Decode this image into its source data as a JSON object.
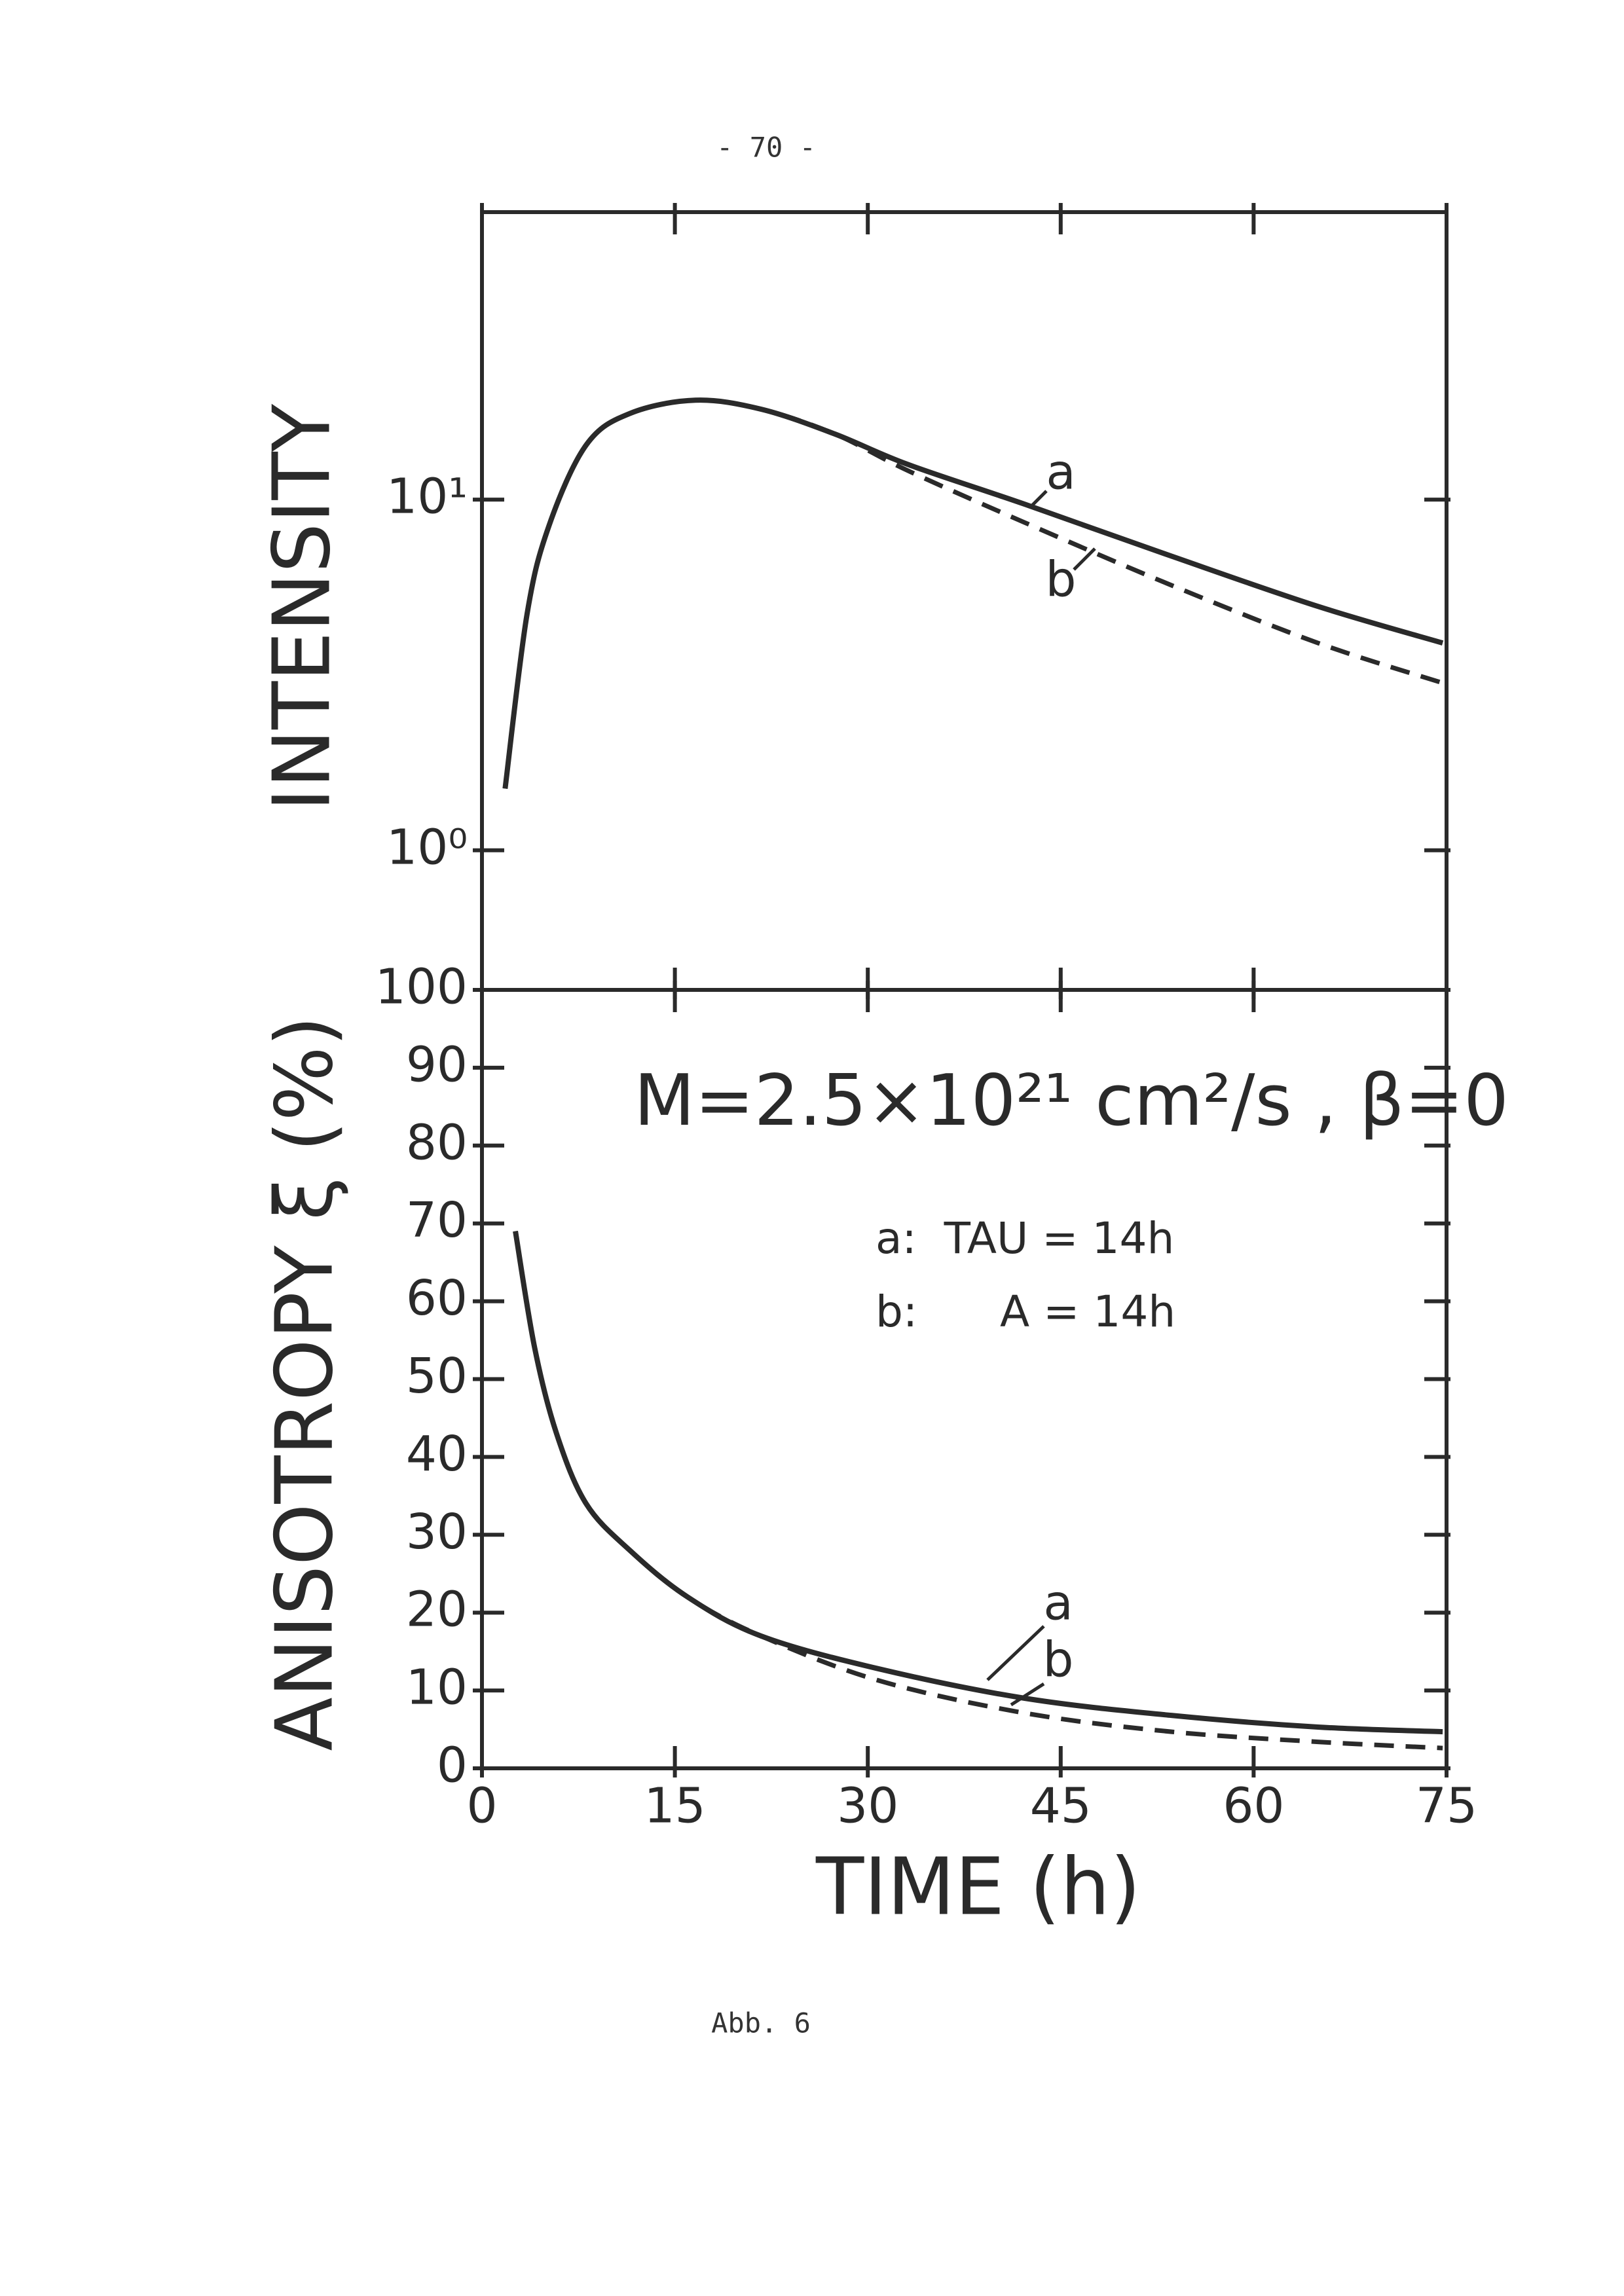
{
  "page_number": "- 70 -",
  "caption": "Abb. 6",
  "chart_data": [
    {
      "type": "line",
      "log_y": true,
      "ylabel": "INTENSITY",
      "xlim": [
        0,
        75
      ],
      "xticks": [
        0,
        15,
        30,
        45,
        60,
        75
      ],
      "ylim": [
        0.4,
        66
      ],
      "yticks": [
        {
          "value": 1,
          "label": "10⁰"
        },
        {
          "value": 10,
          "label": "10¹"
        }
      ],
      "series": [
        {
          "name": "a",
          "color": "#2a2a2a",
          "dashed": false,
          "x": [
            1.8,
            3.5,
            5.2,
            8.1,
            11.5,
            16.6,
            21.7,
            27.4,
            33.1,
            42.2,
            53.6,
            65,
            74.7
          ],
          "values": [
            1.5,
            4.7,
            8.4,
            14.3,
            17.6,
            19.2,
            18.1,
            15.4,
            12.6,
            9.7,
            6.9,
            4.96,
            3.9
          ]
        },
        {
          "name": "b",
          "color": "#2a2a2a",
          "dashed": true,
          "x": [
            1.8,
            3.5,
            5.2,
            8.1,
            11.5,
            16.6,
            21.7,
            27.4,
            33.1,
            42.2,
            53.6,
            65,
            74.7
          ],
          "values": [
            1.5,
            4.7,
            8.4,
            14.3,
            17.6,
            19.2,
            18.1,
            15.4,
            12.1,
            8.6,
            5.7,
            3.9,
            3.0
          ]
        }
      ]
    },
    {
      "type": "line",
      "log_y": false,
      "ylabel": "ANISOTROPY ξ (%)",
      "xlabel": "TIME (h)",
      "xlim": [
        0,
        75
      ],
      "xticks": [
        0,
        15,
        30,
        45,
        60,
        75
      ],
      "ylim": [
        0,
        100
      ],
      "yticks": [
        0,
        10,
        20,
        30,
        40,
        50,
        60,
        70,
        80,
        90,
        100
      ],
      "annotations": [
        "M=2.5×10²¹ cm²/s , β=0",
        "a:  TAU = 14h",
        "b:      A = 14h"
      ],
      "series": [
        {
          "name": "a",
          "color": "#2a2a2a",
          "dashed": false,
          "x": [
            2.6,
            4.1,
            5.8,
            8.1,
            11.5,
            16,
            21.7,
            30.8,
            42.2,
            53.6,
            65,
            74.7
          ],
          "values": [
            69,
            54,
            43,
            34,
            28,
            22,
            17,
            12.8,
            9,
            6.8,
            5.3,
            4.7
          ]
        },
        {
          "name": "b",
          "color": "#2a2a2a",
          "dashed": true,
          "x": [
            2.6,
            4.1,
            5.8,
            8.1,
            11.5,
            16,
            21.7,
            30.8,
            42.2,
            53.6,
            65,
            74.7
          ],
          "values": [
            69,
            54,
            43,
            34,
            28,
            22,
            17,
            11.3,
            7.1,
            4.7,
            3.4,
            2.6
          ]
        }
      ]
    }
  ]
}
